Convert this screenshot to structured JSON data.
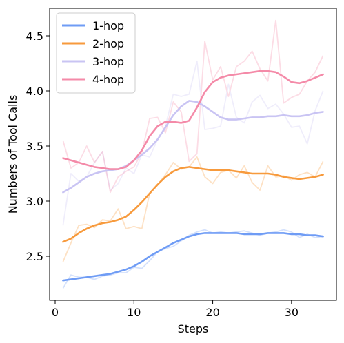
{
  "chart_data": {
    "type": "line",
    "title": "",
    "xlabel": "Steps",
    "ylabel": "Numbers of Tool Calls",
    "xlim": [
      -0.7,
      35.7
    ],
    "ylim": [
      2.1,
      4.75
    ],
    "xticks": [
      0,
      10,
      20,
      30
    ],
    "yticks": [
      2.5,
      3.0,
      3.5,
      4.0,
      4.5
    ],
    "xtick_labels": [
      "0",
      "10",
      "20",
      "30"
    ],
    "ytick_labels": [
      "2.5",
      "3.0",
      "3.5",
      "4.0",
      "4.5"
    ],
    "grid": false,
    "legend_position": "top-left",
    "x": [
      1,
      2,
      3,
      4,
      5,
      6,
      7,
      8,
      9,
      10,
      11,
      12,
      13,
      14,
      15,
      16,
      17,
      18,
      19,
      20,
      21,
      22,
      23,
      24,
      25,
      26,
      27,
      28,
      29,
      30,
      31,
      32,
      33,
      34
    ],
    "series": [
      {
        "name": "1-hop",
        "color": "#6f9cf5",
        "raw": [
          2.21,
          2.33,
          2.31,
          2.31,
          2.29,
          2.32,
          2.33,
          2.35,
          2.35,
          2.4,
          2.39,
          2.46,
          2.54,
          2.57,
          2.59,
          2.64,
          2.69,
          2.72,
          2.74,
          2.71,
          2.72,
          2.71,
          2.72,
          2.73,
          2.71,
          2.69,
          2.71,
          2.72,
          2.74,
          2.72,
          2.67,
          2.7,
          2.67,
          2.68
        ],
        "smooth": [
          2.28,
          2.29,
          2.3,
          2.31,
          2.32,
          2.33,
          2.34,
          2.36,
          2.38,
          2.41,
          2.45,
          2.5,
          2.54,
          2.58,
          2.62,
          2.65,
          2.68,
          2.7,
          2.71,
          2.71,
          2.71,
          2.71,
          2.71,
          2.7,
          2.7,
          2.7,
          2.71,
          2.71,
          2.71,
          2.7,
          2.7,
          2.69,
          2.69,
          2.68
        ]
      },
      {
        "name": "2-hop",
        "color": "#f79a3c",
        "raw": [
          2.45,
          2.62,
          2.78,
          2.79,
          2.76,
          2.83,
          2.82,
          2.93,
          2.75,
          2.77,
          2.75,
          3.07,
          3.15,
          3.24,
          3.35,
          3.29,
          3.31,
          3.4,
          3.22,
          3.16,
          3.26,
          3.28,
          3.21,
          3.32,
          3.17,
          3.1,
          3.32,
          3.22,
          3.23,
          3.19,
          3.24,
          3.26,
          3.22,
          3.36
        ],
        "smooth": [
          2.63,
          2.66,
          2.71,
          2.75,
          2.78,
          2.8,
          2.81,
          2.83,
          2.86,
          2.92,
          2.99,
          3.07,
          3.15,
          3.22,
          3.27,
          3.3,
          3.31,
          3.3,
          3.29,
          3.28,
          3.28,
          3.28,
          3.27,
          3.26,
          3.25,
          3.25,
          3.25,
          3.24,
          3.22,
          3.21,
          3.2,
          3.21,
          3.22,
          3.24
        ]
      },
      {
        "name": "3-hop",
        "color": "#c9c4f3",
        "raw": [
          2.78,
          3.25,
          3.18,
          3.22,
          3.35,
          3.45,
          3.1,
          3.16,
          3.3,
          3.25,
          3.42,
          3.4,
          3.56,
          3.68,
          3.97,
          3.95,
          3.97,
          4.27,
          3.65,
          3.66,
          3.68,
          4.06,
          3.76,
          3.71,
          3.9,
          3.96,
          3.84,
          3.88,
          3.79,
          3.67,
          3.68,
          3.52,
          3.82,
          4.0
        ],
        "smooth": [
          3.08,
          3.12,
          3.17,
          3.22,
          3.25,
          3.27,
          3.28,
          3.29,
          3.32,
          3.37,
          3.42,
          3.48,
          3.56,
          3.67,
          3.78,
          3.86,
          3.91,
          3.9,
          3.86,
          3.81,
          3.76,
          3.74,
          3.74,
          3.75,
          3.76,
          3.76,
          3.77,
          3.77,
          3.78,
          3.77,
          3.77,
          3.78,
          3.8,
          3.81
        ]
      },
      {
        "name": "4-hop",
        "color": "#f48aa8",
        "raw": [
          3.55,
          3.3,
          3.35,
          3.5,
          3.35,
          3.45,
          3.08,
          3.22,
          3.27,
          3.31,
          3.44,
          3.75,
          3.76,
          3.62,
          3.9,
          3.81,
          3.36,
          3.43,
          4.45,
          4.1,
          4.22,
          3.95,
          4.22,
          4.27,
          4.36,
          4.2,
          4.09,
          4.64,
          3.89,
          3.94,
          3.97,
          4.09,
          4.17,
          4.32
        ],
        "smooth": [
          3.39,
          3.37,
          3.35,
          3.33,
          3.31,
          3.3,
          3.29,
          3.29,
          3.31,
          3.37,
          3.46,
          3.59,
          3.68,
          3.72,
          3.72,
          3.71,
          3.73,
          3.85,
          3.99,
          4.08,
          4.12,
          4.14,
          4.15,
          4.16,
          4.17,
          4.18,
          4.18,
          4.17,
          4.13,
          4.08,
          4.07,
          4.09,
          4.12,
          4.15
        ]
      }
    ]
  }
}
